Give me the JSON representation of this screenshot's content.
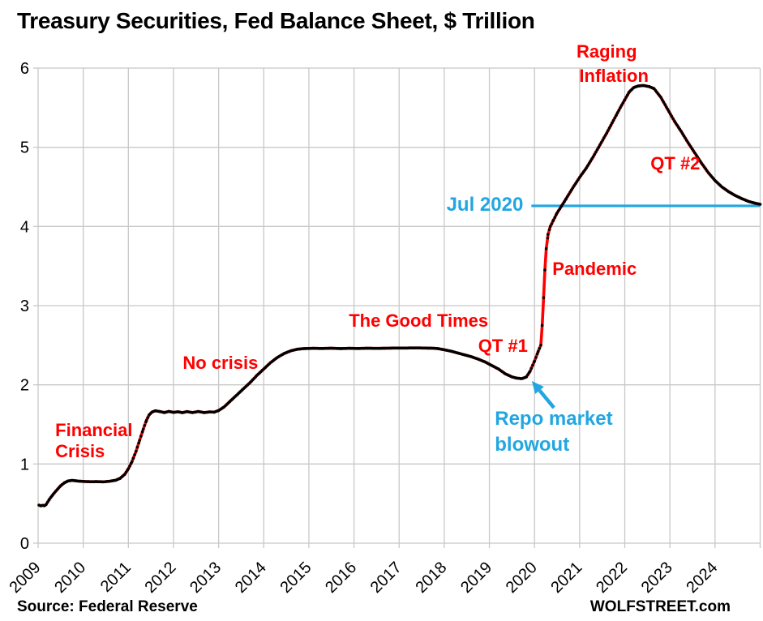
{
  "title": "Treasury Securities, Fed Balance Sheet, $ Trillion",
  "footer": {
    "source": "Source: Federal Reserve",
    "watermark": "WOLFSTREET.com"
  },
  "colors": {
    "line_red": "#FF0000",
    "marker_black": "#000000",
    "annotation_red": "#FF0000",
    "annotation_blue": "#22A6E2",
    "grid": "#C8C8C8",
    "axis_text": "#000000",
    "background": "#FFFFFF"
  },
  "chart_data": {
    "type": "line",
    "title": "Treasury Securities, Fed Balance Sheet, $ Trillion",
    "xlabel": "",
    "ylabel": "",
    "x_range": [
      2009,
      2025
    ],
    "y_range": [
      0,
      6
    ],
    "x_tick_labels": [
      "2009",
      "2010",
      "2011",
      "2012",
      "2013",
      "2014",
      "2015",
      "2016",
      "2017",
      "2018",
      "2019",
      "2020",
      "2021",
      "2022",
      "2023",
      "2024"
    ],
    "y_tick_labels": [
      "0",
      "1",
      "2",
      "3",
      "4",
      "5",
      "6"
    ],
    "grid": true,
    "legend": "none",
    "series": [
      {
        "name": "Treasury securities held by the Fed ($ trillion)",
        "style": "red line with black point markers",
        "points": [
          [
            2009.02,
            0.48
          ],
          [
            2009.06,
            0.472
          ],
          [
            2009.1,
            0.478
          ],
          [
            2009.14,
            0.473
          ],
          [
            2009.18,
            0.49
          ],
          [
            2009.25,
            0.555
          ],
          [
            2009.33,
            0.615
          ],
          [
            2009.42,
            0.675
          ],
          [
            2009.5,
            0.725
          ],
          [
            2009.58,
            0.762
          ],
          [
            2009.66,
            0.785
          ],
          [
            2009.75,
            0.793
          ],
          [
            2009.9,
            0.783
          ],
          [
            2010.0,
            0.78
          ],
          [
            2010.15,
            0.776
          ],
          [
            2010.3,
            0.777
          ],
          [
            2010.45,
            0.775
          ],
          [
            2010.6,
            0.783
          ],
          [
            2010.72,
            0.795
          ],
          [
            2010.82,
            0.82
          ],
          [
            2010.92,
            0.87
          ],
          [
            2011.0,
            0.94
          ],
          [
            2011.08,
            1.03
          ],
          [
            2011.17,
            1.16
          ],
          [
            2011.25,
            1.3
          ],
          [
            2011.33,
            1.44
          ],
          [
            2011.4,
            1.55
          ],
          [
            2011.46,
            1.62
          ],
          [
            2011.52,
            1.655
          ],
          [
            2011.6,
            1.672
          ],
          [
            2011.7,
            1.662
          ],
          [
            2011.8,
            1.65
          ],
          [
            2011.9,
            1.664
          ],
          [
            2012.0,
            1.652
          ],
          [
            2012.1,
            1.66
          ],
          [
            2012.2,
            1.648
          ],
          [
            2012.3,
            1.662
          ],
          [
            2012.42,
            1.65
          ],
          [
            2012.55,
            1.663
          ],
          [
            2012.68,
            1.649
          ],
          [
            2012.8,
            1.658
          ],
          [
            2012.9,
            1.655
          ],
          [
            2013.0,
            1.675
          ],
          [
            2013.12,
            1.72
          ],
          [
            2013.25,
            1.79
          ],
          [
            2013.4,
            1.87
          ],
          [
            2013.55,
            1.95
          ],
          [
            2013.7,
            2.03
          ],
          [
            2013.85,
            2.12
          ],
          [
            2014.0,
            2.2
          ],
          [
            2014.15,
            2.28
          ],
          [
            2014.3,
            2.345
          ],
          [
            2014.45,
            2.395
          ],
          [
            2014.6,
            2.43
          ],
          [
            2014.75,
            2.45
          ],
          [
            2014.9,
            2.458
          ],
          [
            2015.1,
            2.461
          ],
          [
            2015.3,
            2.459
          ],
          [
            2015.5,
            2.462
          ],
          [
            2015.7,
            2.458
          ],
          [
            2015.9,
            2.461
          ],
          [
            2016.1,
            2.459
          ],
          [
            2016.3,
            2.462
          ],
          [
            2016.5,
            2.46
          ],
          [
            2016.7,
            2.462
          ],
          [
            2016.9,
            2.465
          ],
          [
            2017.1,
            2.464
          ],
          [
            2017.3,
            2.466
          ],
          [
            2017.5,
            2.465
          ],
          [
            2017.7,
            2.463
          ],
          [
            2017.85,
            2.458
          ],
          [
            2018.0,
            2.443
          ],
          [
            2018.15,
            2.425
          ],
          [
            2018.3,
            2.402
          ],
          [
            2018.45,
            2.378
          ],
          [
            2018.6,
            2.355
          ],
          [
            2018.75,
            2.325
          ],
          [
            2018.9,
            2.29
          ],
          [
            2019.05,
            2.245
          ],
          [
            2019.2,
            2.2
          ],
          [
            2019.35,
            2.14
          ],
          [
            2019.5,
            2.1
          ],
          [
            2019.6,
            2.085
          ],
          [
            2019.72,
            2.078
          ],
          [
            2019.82,
            2.1
          ],
          [
            2019.9,
            2.17
          ],
          [
            2020.0,
            2.3
          ],
          [
            2020.08,
            2.42
          ],
          [
            2020.14,
            2.5
          ],
          [
            2020.17,
            2.75
          ],
          [
            2020.2,
            3.1
          ],
          [
            2020.23,
            3.45
          ],
          [
            2020.26,
            3.72
          ],
          [
            2020.3,
            3.9
          ],
          [
            2020.35,
            4.0
          ],
          [
            2020.42,
            4.08
          ],
          [
            2020.5,
            4.17
          ],
          [
            2020.6,
            4.26
          ],
          [
            2020.7,
            4.35
          ],
          [
            2020.85,
            4.49
          ],
          [
            2021.0,
            4.62
          ],
          [
            2021.15,
            4.74
          ],
          [
            2021.3,
            4.88
          ],
          [
            2021.45,
            5.03
          ],
          [
            2021.6,
            5.18
          ],
          [
            2021.75,
            5.34
          ],
          [
            2021.9,
            5.5
          ],
          [
            2022.0,
            5.6
          ],
          [
            2022.1,
            5.7
          ],
          [
            2022.2,
            5.755
          ],
          [
            2022.3,
            5.775
          ],
          [
            2022.42,
            5.78
          ],
          [
            2022.55,
            5.765
          ],
          [
            2022.65,
            5.74
          ],
          [
            2022.8,
            5.63
          ],
          [
            2022.95,
            5.48
          ],
          [
            2023.1,
            5.33
          ],
          [
            2023.25,
            5.2
          ],
          [
            2023.4,
            5.06
          ],
          [
            2023.55,
            4.93
          ],
          [
            2023.7,
            4.8
          ],
          [
            2023.85,
            4.68
          ],
          [
            2024.0,
            4.58
          ],
          [
            2024.15,
            4.5
          ],
          [
            2024.3,
            4.44
          ],
          [
            2024.45,
            4.39
          ],
          [
            2024.6,
            4.35
          ],
          [
            2024.75,
            4.315
          ],
          [
            2024.88,
            4.295
          ],
          [
            2025.0,
            4.28
          ]
        ]
      }
    ],
    "reference_line": {
      "label": "Jul 2020",
      "value": 4.26,
      "x_start": 2019.93,
      "x_end": 2025.02
    },
    "annotations": [
      {
        "text": "Financial",
        "x": 2009.38,
        "y": 1.435,
        "color": "red",
        "align": "start"
      },
      {
        "text": "Crisis",
        "x": 2009.38,
        "y": 1.165,
        "color": "red",
        "align": "start"
      },
      {
        "text": "No crisis",
        "x": 2013.04,
        "y": 2.285,
        "color": "red",
        "align": "middle"
      },
      {
        "text": "The Good Times",
        "x": 2017.43,
        "y": 2.816,
        "color": "red",
        "align": "middle"
      },
      {
        "text": "QT #1",
        "x": 2019.3,
        "y": 2.5,
        "color": "red",
        "align": "middle"
      },
      {
        "text": "Pandemic",
        "x": 2021.33,
        "y": 3.472,
        "color": "red",
        "align": "middle"
      },
      {
        "text": "Raging",
        "x": 2021.6,
        "y": 6.216,
        "color": "red",
        "align": "middle"
      },
      {
        "text": "Inflation",
        "x": 2021.76,
        "y": 5.909,
        "color": "red",
        "align": "middle"
      },
      {
        "text": "QT #2",
        "x": 2023.12,
        "y": 4.803,
        "color": "red",
        "align": "middle"
      },
      {
        "text": "Jul 2020",
        "x": 2019.75,
        "y": 4.28,
        "color": "blue",
        "align": "end"
      },
      {
        "text": "Repo market",
        "x": 2019.12,
        "y": 1.577,
        "color": "blue",
        "align": "start"
      },
      {
        "text": "blowout",
        "x": 2019.12,
        "y": 1.249,
        "color": "blue",
        "align": "start"
      }
    ],
    "arrow": {
      "from": [
        2020.43,
        1.71
      ],
      "to": [
        2019.94,
        2.048
      ],
      "color": "blue"
    }
  }
}
